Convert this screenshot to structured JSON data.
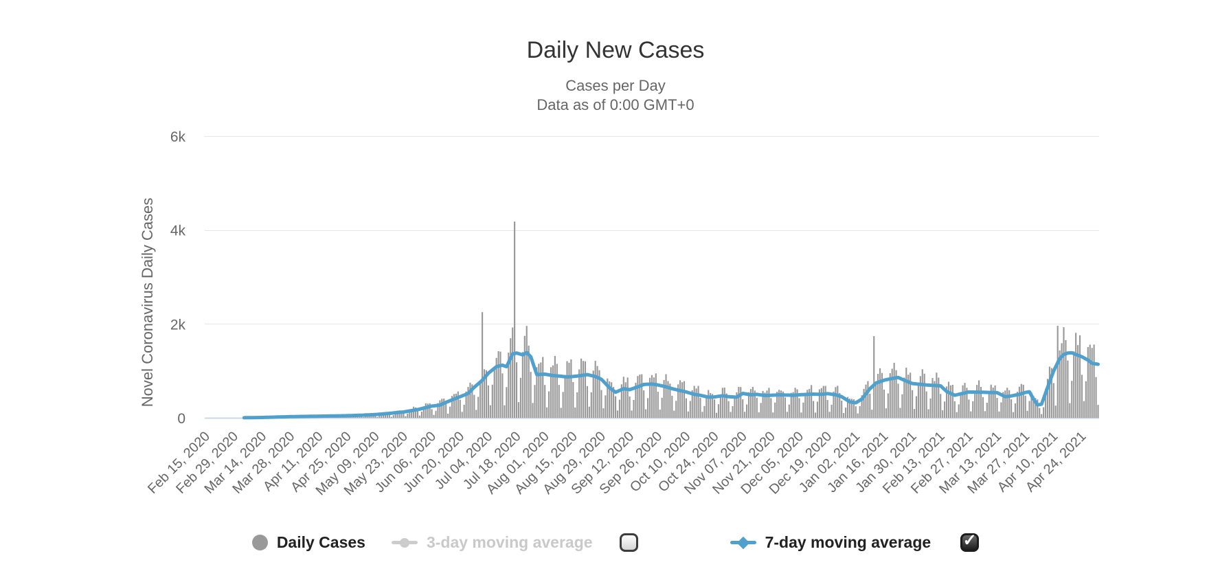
{
  "header": {
    "title": "Daily New Cases",
    "subtitle_line1": "Cases per Day",
    "subtitle_line2": "Data as of 0:00 GMT+0"
  },
  "chart_data": {
    "type": "bar",
    "title": "Daily New Cases",
    "subtitle": [
      "Cases per Day",
      "Data as of 0:00 GMT+0"
    ],
    "xlabel": "",
    "ylabel": "Novel Coronavirus Daily Cases",
    "ylim": [
      0,
      6000
    ],
    "grid": "horizontal",
    "legend_position": "bottom",
    "x_range": [
      "2020-02-15",
      "2021-05-02"
    ],
    "y_ticks": [
      {
        "value": 0,
        "label": "0"
      },
      {
        "value": 2000,
        "label": "2k"
      },
      {
        "value": 4000,
        "label": "4k"
      },
      {
        "value": 6000,
        "label": "6k"
      }
    ],
    "x_tick_labels": [
      "Feb 15, 2020",
      "Feb 29, 2020",
      "Mar 14, 2020",
      "Mar 28, 2020",
      "Apr 11, 2020",
      "Apr 25, 2020",
      "May 09, 2020",
      "May 23, 2020",
      "Jun 06, 2020",
      "Jun 20, 2020",
      "Jul 04, 2020",
      "Jul 18, 2020",
      "Aug 01, 2020",
      "Aug 15, 2020",
      "Aug 29, 2020",
      "Sep 12, 2020",
      "Sep 26, 2020",
      "Oct 10, 2020",
      "Oct 24, 2020",
      "Nov 07, 2020",
      "Nov 21, 2020",
      "Dec 05, 2020",
      "Dec 19, 2020",
      "Jan 02, 2021",
      "Jan 16, 2021",
      "Jan 30, 2021",
      "Feb 13, 2021",
      "Feb 27, 2021",
      "Mar 13, 2021",
      "Mar 27, 2021",
      "Apr 10, 2021",
      "Apr 24, 2021"
    ],
    "series": [
      {
        "name": "Daily Cases",
        "type": "column",
        "color": "#999999",
        "visible": true,
        "outlier_bars": [
          {
            "date": "2020-07-01",
            "value": 2250
          },
          {
            "date": "2020-07-17",
            "value": 4180
          },
          {
            "date": "2021-01-11",
            "value": 1740
          },
          {
            "date": "2021-04-12",
            "value": 1960
          },
          {
            "date": "2021-04-15",
            "value": 1930
          }
        ],
        "render": {
          "seed": 7,
          "weekday_factors": [
            0.25,
            0.62,
            1.1,
            1.27,
            1.32,
            1.27,
            0.8
          ],
          "jitter": 0.24
        }
      },
      {
        "name": "3-day moving average",
        "type": "line",
        "color": "#cccccc",
        "visible": false,
        "points": []
      },
      {
        "name": "7-day moving average",
        "type": "line",
        "color": "#4fa0cd",
        "visible": true,
        "points": [
          [
            "2020-02-15",
            0
          ],
          [
            "2020-02-25",
            0
          ],
          [
            "2020-03-01",
            1
          ],
          [
            "2020-03-08",
            3
          ],
          [
            "2020-03-14",
            8
          ],
          [
            "2020-03-21",
            16
          ],
          [
            "2020-03-28",
            25
          ],
          [
            "2020-04-04",
            30
          ],
          [
            "2020-04-11",
            35
          ],
          [
            "2020-04-18",
            40
          ],
          [
            "2020-04-25",
            45
          ],
          [
            "2020-05-02",
            55
          ],
          [
            "2020-05-09",
            70
          ],
          [
            "2020-05-16",
            95
          ],
          [
            "2020-05-23",
            125
          ],
          [
            "2020-05-30",
            175
          ],
          [
            "2020-06-06",
            250
          ],
          [
            "2020-06-10",
            270
          ],
          [
            "2020-06-13",
            330
          ],
          [
            "2020-06-17",
            400
          ],
          [
            "2020-06-20",
            450
          ],
          [
            "2020-06-24",
            520
          ],
          [
            "2020-06-27",
            650
          ],
          [
            "2020-07-01",
            800
          ],
          [
            "2020-07-04",
            950
          ],
          [
            "2020-07-08",
            1090
          ],
          [
            "2020-07-11",
            1120
          ],
          [
            "2020-07-13",
            1090
          ],
          [
            "2020-07-16",
            1360
          ],
          [
            "2020-07-18",
            1380
          ],
          [
            "2020-07-21",
            1340
          ],
          [
            "2020-07-23",
            1390
          ],
          [
            "2020-07-25",
            1300
          ],
          [
            "2020-07-28",
            920
          ],
          [
            "2020-08-01",
            930
          ],
          [
            "2020-08-05",
            900
          ],
          [
            "2020-08-08",
            890
          ],
          [
            "2020-08-12",
            870
          ],
          [
            "2020-08-15",
            880
          ],
          [
            "2020-08-19",
            900
          ],
          [
            "2020-08-22",
            920
          ],
          [
            "2020-08-26",
            880
          ],
          [
            "2020-08-29",
            820
          ],
          [
            "2020-09-02",
            640
          ],
          [
            "2020-09-05",
            545
          ],
          [
            "2020-09-09",
            620
          ],
          [
            "2020-09-12",
            600
          ],
          [
            "2020-09-16",
            660
          ],
          [
            "2020-09-19",
            710
          ],
          [
            "2020-09-23",
            720
          ],
          [
            "2020-09-26",
            700
          ],
          [
            "2020-09-30",
            660
          ],
          [
            "2020-10-03",
            620
          ],
          [
            "2020-10-10",
            550
          ],
          [
            "2020-10-14",
            500
          ],
          [
            "2020-10-17",
            480
          ],
          [
            "2020-10-21",
            440
          ],
          [
            "2020-10-24",
            445
          ],
          [
            "2020-10-28",
            470
          ],
          [
            "2020-10-31",
            450
          ],
          [
            "2020-11-04",
            440
          ],
          [
            "2020-11-07",
            520
          ],
          [
            "2020-11-11",
            490
          ],
          [
            "2020-11-14",
            500
          ],
          [
            "2020-11-18",
            475
          ],
          [
            "2020-11-21",
            480
          ],
          [
            "2020-11-25",
            490
          ],
          [
            "2020-11-28",
            485
          ],
          [
            "2020-12-02",
            480
          ],
          [
            "2020-12-05",
            490
          ],
          [
            "2020-12-09",
            500
          ],
          [
            "2020-12-12",
            505
          ],
          [
            "2020-12-16",
            500
          ],
          [
            "2020-12-19",
            515
          ],
          [
            "2020-12-23",
            490
          ],
          [
            "2020-12-26",
            450
          ],
          [
            "2020-12-30",
            340
          ],
          [
            "2021-01-02",
            320
          ],
          [
            "2021-01-05",
            400
          ],
          [
            "2021-01-09",
            620
          ],
          [
            "2021-01-12",
            740
          ],
          [
            "2021-01-16",
            800
          ],
          [
            "2021-01-19",
            830
          ],
          [
            "2021-01-23",
            860
          ],
          [
            "2021-01-26",
            800
          ],
          [
            "2021-01-30",
            730
          ],
          [
            "2021-02-06",
            700
          ],
          [
            "2021-02-13",
            680
          ],
          [
            "2021-02-16",
            560
          ],
          [
            "2021-02-20",
            480
          ],
          [
            "2021-02-24",
            520
          ],
          [
            "2021-02-27",
            550
          ],
          [
            "2021-03-06",
            545
          ],
          [
            "2021-03-13",
            535
          ],
          [
            "2021-03-17",
            450
          ],
          [
            "2021-03-20",
            465
          ],
          [
            "2021-03-24",
            500
          ],
          [
            "2021-03-27",
            540
          ],
          [
            "2021-03-29",
            555
          ],
          [
            "2021-03-31",
            400
          ],
          [
            "2021-04-02",
            275
          ],
          [
            "2021-04-04",
            290
          ],
          [
            "2021-04-07",
            650
          ],
          [
            "2021-04-10",
            1000
          ],
          [
            "2021-04-13",
            1260
          ],
          [
            "2021-04-15",
            1350
          ],
          [
            "2021-04-17",
            1380
          ],
          [
            "2021-04-19",
            1385
          ],
          [
            "2021-04-21",
            1350
          ],
          [
            "2021-04-24",
            1300
          ],
          [
            "2021-04-27",
            1230
          ],
          [
            "2021-04-29",
            1160
          ],
          [
            "2021-05-02",
            1140
          ]
        ]
      }
    ]
  },
  "legend": {
    "check_glyph": "✓",
    "items": [
      {
        "label": "Daily Cases",
        "marker": "circle",
        "marker_color": "#999999",
        "label_color": "#212121",
        "enabled": true,
        "checkbox": null
      },
      {
        "label": "3-day moving average",
        "marker": "line-circle",
        "marker_color": "#cccccc",
        "label_color": "#c9c9c9",
        "enabled": false,
        "checkbox": "unchecked"
      },
      {
        "label": "7-day moving average",
        "marker": "line-diamond",
        "marker_color": "#4fa0cd",
        "label_color": "#212121",
        "enabled": true,
        "checkbox": "checked"
      }
    ]
  },
  "colors": {
    "bars": "#999999",
    "avg_line": "#4fa0cd",
    "gridline": "#e6e6e6",
    "axis_line": "#ccd6eb",
    "axis_text": "#666666",
    "title_text": "#333333"
  }
}
